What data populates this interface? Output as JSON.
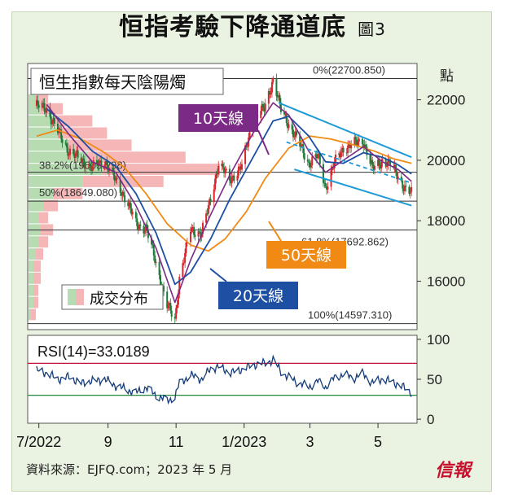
{
  "header": {
    "title": "恒指考驗下降通道底",
    "figure_label": "圖3"
  },
  "footer": {
    "source": "資料來源：EJFQ.com；2023 年 5 月",
    "brand": "信報"
  },
  "colors": {
    "background": "#eaf2e1",
    "up_candle": "#d9252b",
    "down_candle": "#1f7a3a",
    "ma10": "#7b2a85",
    "ma20": "#1d4fa3",
    "ma50": "#f08a14",
    "channel": "#1e9bd7",
    "volume_red": "#f4b6b6",
    "volume_green": "#b7dcb2",
    "rsi_line": "#163c7a",
    "rsi_upper": "#c8102e",
    "rsi_lower": "#1f8a3a"
  },
  "chart_data": [
    {
      "type": "candlestick",
      "title": "恒生指數每天陰陽燭",
      "y_unit": "點",
      "ylim": [
        14400,
        23200
      ],
      "y_ticks": [
        "22000",
        "20000",
        "18000",
        "16000"
      ],
      "x_ticks": [
        "7/2022",
        "9",
        "11",
        "1/2023",
        "3",
        "5"
      ],
      "fib_levels": [
        {
          "label": "0%(22700.850)",
          "value": 22700.85
        },
        {
          "label": "38.2%(19605.298)",
          "value": 19605.298
        },
        {
          "label": "50%(18649.080)",
          "value": 18649.08
        },
        {
          "label": "61.8%(17692.862)",
          "value": 17692.862
        },
        {
          "label": "100%(14597.310)",
          "value": 14597.31
        }
      ],
      "callouts": {
        "ma10": "10天線",
        "ma20": "20天線",
        "ma50": "50天線"
      },
      "volume_profile_legend": "成交分布",
      "close_path": [
        [
          "2022-06-29",
          21800
        ],
        [
          "2022-07-08",
          21700
        ],
        [
          "2022-07-18",
          20950
        ],
        [
          "2022-07-28",
          20300
        ],
        [
          "2022-08-08",
          20000
        ],
        [
          "2022-08-18",
          19750
        ],
        [
          "2022-08-29",
          20000
        ],
        [
          "2022-09-08",
          19300
        ],
        [
          "2022-09-16",
          18800
        ],
        [
          "2022-09-26",
          17900
        ],
        [
          "2022-10-05",
          17750
        ],
        [
          "2022-10-14",
          16600
        ],
        [
          "2022-10-24",
          15200
        ],
        [
          "2022-10-31",
          14700
        ],
        [
          "2022-11-04",
          16100
        ],
        [
          "2022-11-14",
          17700
        ],
        [
          "2022-11-24",
          17600
        ],
        [
          "2022-12-02",
          18700
        ],
        [
          "2022-12-09",
          19900
        ],
        [
          "2022-12-19",
          19350
        ],
        [
          "2022-12-30",
          19800
        ],
        [
          "2023-01-09",
          21350
        ],
        [
          "2023-01-19",
          21700
        ],
        [
          "2023-01-27",
          22690
        ],
        [
          "2023-02-03",
          21650
        ],
        [
          "2023-02-10",
          21200
        ],
        [
          "2023-02-20",
          20500
        ],
        [
          "2023-02-28",
          19900
        ],
        [
          "2023-03-08",
          20150
        ],
        [
          "2023-03-15",
          19100
        ],
        [
          "2023-03-23",
          19900
        ],
        [
          "2023-03-31",
          20400
        ],
        [
          "2023-04-10",
          20550
        ],
        [
          "2023-04-18",
          20650
        ],
        [
          "2023-04-26",
          19700
        ],
        [
          "2023-05-05",
          20000
        ],
        [
          "2023-05-12",
          19850
        ],
        [
          "2023-05-19",
          19500
        ],
        [
          "2023-05-26",
          19000
        ],
        [
          "2023-05-31",
          18900
        ]
      ],
      "ma10_path": [
        [
          "2022-07-08",
          21850
        ],
        [
          "2022-07-28",
          20850
        ],
        [
          "2022-08-18",
          19950
        ],
        [
          "2022-09-08",
          19600
        ],
        [
          "2022-09-26",
          18500
        ],
        [
          "2022-10-14",
          17100
        ],
        [
          "2022-10-31",
          15300
        ],
        [
          "2022-11-14",
          16700
        ],
        [
          "2022-12-02",
          18200
        ],
        [
          "2022-12-19",
          19500
        ],
        [
          "2023-01-09",
          20900
        ],
        [
          "2023-01-27",
          21900
        ],
        [
          "2023-02-10",
          21500
        ],
        [
          "2023-02-28",
          20300
        ],
        [
          "2023-03-15",
          19600
        ],
        [
          "2023-03-31",
          20000
        ],
        [
          "2023-04-18",
          20450
        ],
        [
          "2023-05-05",
          19950
        ],
        [
          "2023-05-19",
          19700
        ],
        [
          "2023-05-31",
          19300
        ]
      ],
      "ma20_path": [
        [
          "2022-07-08",
          21700
        ],
        [
          "2022-07-28",
          21100
        ],
        [
          "2022-08-18",
          20300
        ],
        [
          "2022-09-08",
          19800
        ],
        [
          "2022-09-26",
          18900
        ],
        [
          "2022-10-14",
          17600
        ],
        [
          "2022-10-31",
          15900
        ],
        [
          "2022-11-14",
          16300
        ],
        [
          "2022-12-02",
          17400
        ],
        [
          "2022-12-19",
          18700
        ],
        [
          "2023-01-09",
          20100
        ],
        [
          "2023-01-27",
          21300
        ],
        [
          "2023-02-10",
          21450
        ],
        [
          "2023-02-28",
          20800
        ],
        [
          "2023-03-15",
          19950
        ],
        [
          "2023-03-31",
          19900
        ],
        [
          "2023-04-18",
          20250
        ],
        [
          "2023-05-05",
          20100
        ],
        [
          "2023-05-19",
          19850
        ],
        [
          "2023-05-31",
          19550
        ]
      ],
      "ma50_path": [
        [
          "2022-06-29",
          20800
        ],
        [
          "2022-07-18",
          21000
        ],
        [
          "2022-08-08",
          20700
        ],
        [
          "2022-08-29",
          20250
        ],
        [
          "2022-09-16",
          19750
        ],
        [
          "2022-10-05",
          18900
        ],
        [
          "2022-10-24",
          17900
        ],
        [
          "2022-11-14",
          17200
        ],
        [
          "2022-11-30",
          17000
        ],
        [
          "2022-12-15",
          17400
        ],
        [
          "2023-01-03",
          18300
        ],
        [
          "2023-01-20",
          19400
        ],
        [
          "2023-02-10",
          20400
        ],
        [
          "2023-03-01",
          20800
        ],
        [
          "2023-03-20",
          20700
        ],
        [
          "2023-04-10",
          20500
        ],
        [
          "2023-04-28",
          20300
        ],
        [
          "2023-05-15",
          20050
        ],
        [
          "2023-05-31",
          19900
        ]
      ],
      "channel_upper": [
        [
          "2023-02-01",
          21900
        ],
        [
          "2023-05-31",
          20100
        ]
      ],
      "channel_middle": [
        [
          "2023-02-08",
          20600
        ],
        [
          "2023-05-31",
          19250
        ]
      ],
      "channel_lower": [
        [
          "2023-02-15",
          19700
        ],
        [
          "2023-05-31",
          18500
        ]
      ],
      "volume_profile": [
        {
          "price": 22000,
          "volume": 8,
          "up": 5
        },
        {
          "price": 21700,
          "volume": 14,
          "up": 9
        },
        {
          "price": 21300,
          "volume": 26,
          "up": 15
        },
        {
          "price": 20900,
          "volume": 32,
          "up": 20
        },
        {
          "price": 20500,
          "volume": 42,
          "up": 26
        },
        {
          "price": 20100,
          "volume": 64,
          "up": 40
        },
        {
          "price": 19700,
          "volume": 78,
          "up": 48
        },
        {
          "price": 19300,
          "volume": 55,
          "up": 33
        },
        {
          "price": 18900,
          "volume": 22,
          "up": 12
        },
        {
          "price": 18500,
          "volume": 12,
          "up": 6
        },
        {
          "price": 18100,
          "volume": 8,
          "up": 4
        },
        {
          "price": 17700,
          "volume": 10,
          "up": 5
        },
        {
          "price": 17300,
          "volume": 8,
          "up": 4
        },
        {
          "price": 16900,
          "volume": 6,
          "up": 3
        },
        {
          "price": 16500,
          "volume": 5,
          "up": 3
        },
        {
          "price": 16100,
          "volume": 5,
          "up": 3
        },
        {
          "price": 15700,
          "volume": 4,
          "up": 2
        },
        {
          "price": 15300,
          "volume": 4,
          "up": 2
        },
        {
          "price": 14900,
          "volume": 3,
          "up": 2
        }
      ]
    },
    {
      "type": "line",
      "title": "RSI(14)=33.0189",
      "ylim": [
        -5,
        105
      ],
      "y_ticks": [
        "100",
        "50",
        "0"
      ],
      "overbought": 70,
      "oversold": 30,
      "series": [
        {
          "values": [
            [
              "2022-06-29",
              61
            ],
            [
              "2022-07-08",
              58
            ],
            [
              "2022-07-18",
              50
            ],
            [
              "2022-07-28",
              53
            ],
            [
              "2022-08-08",
              45
            ],
            [
              "2022-08-18",
              48
            ],
            [
              "2022-08-29",
              50
            ],
            [
              "2022-09-08",
              42
            ],
            [
              "2022-09-16",
              38
            ],
            [
              "2022-09-26",
              33
            ],
            [
              "2022-10-05",
              40
            ],
            [
              "2022-10-14",
              30
            ],
            [
              "2022-10-24",
              23
            ],
            [
              "2022-10-31",
              28
            ],
            [
              "2022-11-04",
              45
            ],
            [
              "2022-11-14",
              55
            ],
            [
              "2022-11-24",
              50
            ],
            [
              "2022-12-02",
              63
            ],
            [
              "2022-12-09",
              66
            ],
            [
              "2022-12-19",
              58
            ],
            [
              "2022-12-30",
              62
            ],
            [
              "2023-01-09",
              68
            ],
            [
              "2023-01-19",
              70
            ],
            [
              "2023-01-27",
              74
            ],
            [
              "2023-02-03",
              60
            ],
            [
              "2023-02-10",
              52
            ],
            [
              "2023-02-20",
              45
            ],
            [
              "2023-02-28",
              40
            ],
            [
              "2023-03-08",
              48
            ],
            [
              "2023-03-15",
              40
            ],
            [
              "2023-03-23",
              52
            ],
            [
              "2023-03-31",
              56
            ],
            [
              "2023-04-10",
              52
            ],
            [
              "2023-04-18",
              57
            ],
            [
              "2023-04-26",
              45
            ],
            [
              "2023-05-05",
              51
            ],
            [
              "2023-05-12",
              47
            ],
            [
              "2023-05-19",
              44
            ],
            [
              "2023-05-26",
              38
            ],
            [
              "2023-05-31",
              33
            ]
          ]
        }
      ]
    }
  ]
}
